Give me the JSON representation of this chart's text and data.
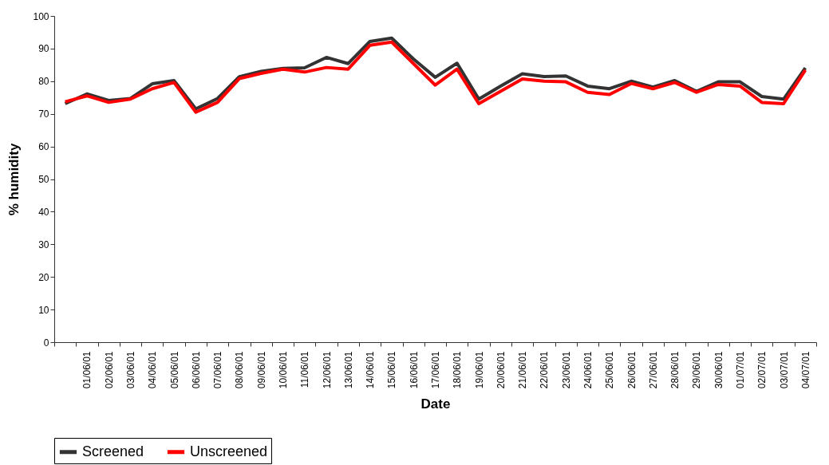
{
  "chart_data": {
    "type": "line",
    "xlabel": "Date",
    "ylabel": "% humidity",
    "categories": [
      null,
      "01/06/01",
      "02/06/01",
      "03/06/01",
      "04/06/01",
      "05/06/01",
      "06/06/01",
      "07/06/01",
      "08/06/01",
      "09/06/01",
      "10/06/01",
      "11/06/01",
      "12/06/01",
      "13/06/01",
      "14/06/01",
      "15/06/01",
      "16/06/01",
      "17/06/01",
      "18/06/01",
      "19/06/01",
      "20/06/01",
      "21/06/01",
      "22/06/01",
      "23/06/01",
      "24/06/01",
      "25/06/01",
      "26/06/01",
      "27/06/01",
      "28/06/01",
      "29/06/01",
      "30/06/01",
      "01/07/01",
      "02/07/01",
      "03/07/01",
      "04/07/01"
    ],
    "series": [
      {
        "name": "Screened",
        "color": "#333333",
        "values": [
          73.1,
          76.1,
          74.1,
          74.7,
          79.2,
          80.2,
          71.5,
          74.7,
          81.4,
          83,
          83.9,
          84.1,
          87.3,
          85.4,
          92.2,
          93.2,
          86.8,
          81.2,
          85.5,
          74.5,
          78.5,
          82.3,
          81.4,
          81.6,
          78.5,
          77.7,
          80,
          78.2,
          80.2,
          76.9,
          79.8,
          79.8,
          75.3,
          74.5,
          84.1
        ]
      },
      {
        "name": "Unscreened",
        "color": "#ff0000",
        "values": [
          73.7,
          75.5,
          73.5,
          74.5,
          77.7,
          79.6,
          70.5,
          73.5,
          80.8,
          82.4,
          83.7,
          82.8,
          84.2,
          83.7,
          91,
          92,
          85.4,
          78.8,
          83.7,
          73.1,
          76.9,
          80.7,
          80,
          79.8,
          76.6,
          75.9,
          79.3,
          77.7,
          79.6,
          76.6,
          79,
          78.5,
          73.5,
          73.1,
          83.4
        ]
      }
    ],
    "ylim": [
      0,
      100
    ],
    "yticks": [
      0,
      10,
      20,
      30,
      40,
      50,
      60,
      70,
      80,
      90,
      100
    ],
    "grid": false,
    "legend": "bottom",
    "marker": "none",
    "line_style": "solid"
  }
}
